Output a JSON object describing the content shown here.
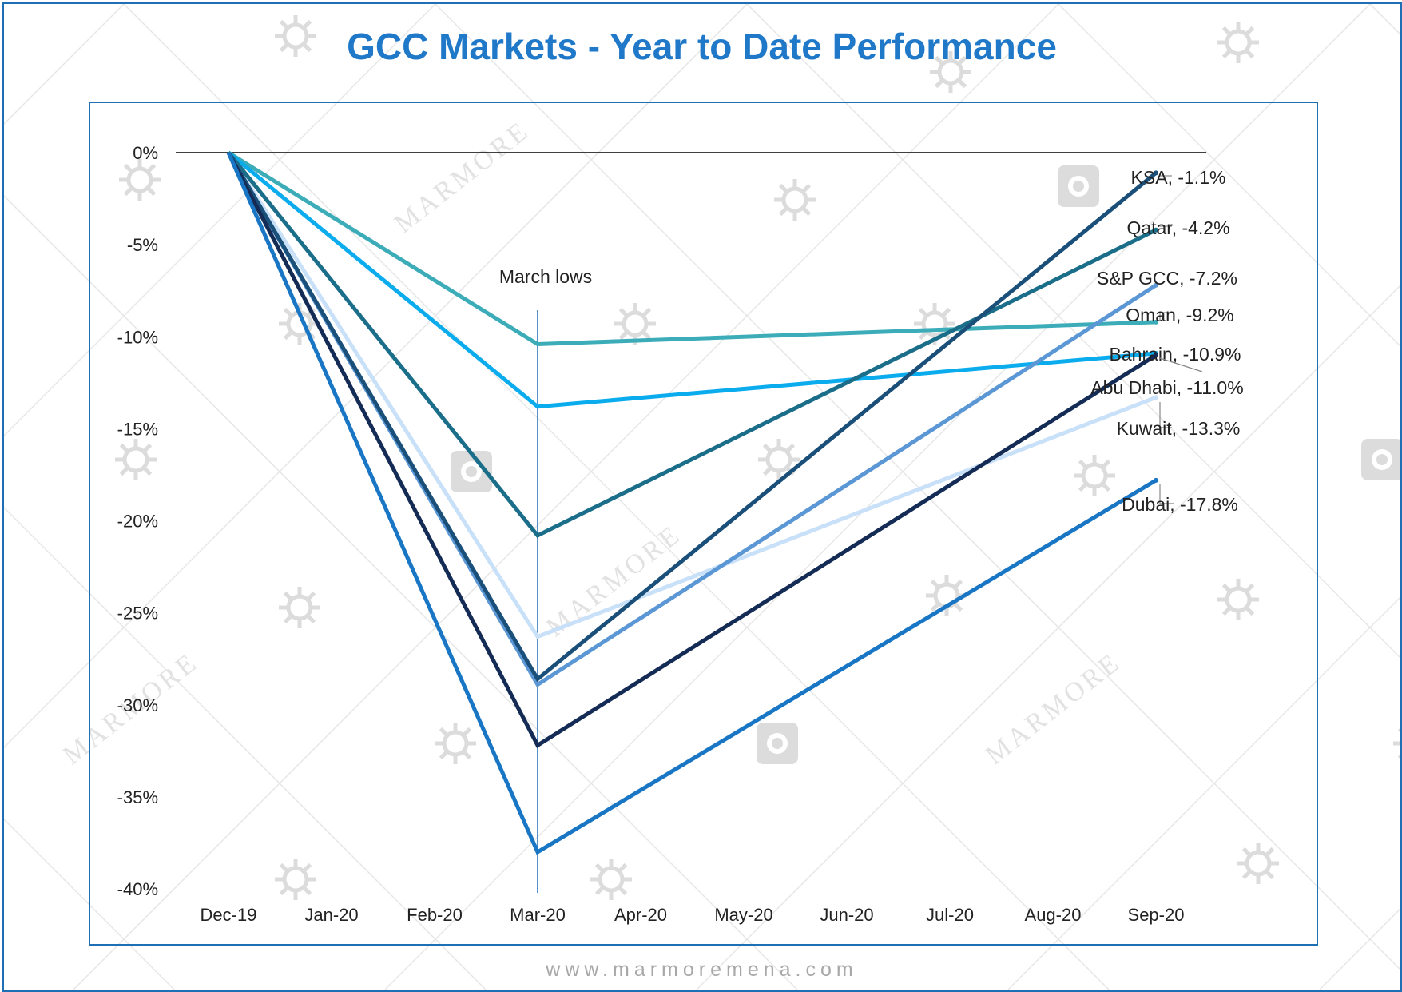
{
  "header": {
    "title": "GCC Markets - Year to Date Performance"
  },
  "footer": {
    "text": "www.marmoremena.com"
  },
  "watermark": {
    "text": "MARMORE",
    "color": "#dcdcdc"
  },
  "chart_data": {
    "type": "line",
    "title": "GCC Markets - Year to Date Performance",
    "xlabel": "",
    "ylabel": "",
    "x": [
      "Dec-19",
      "Jan-20",
      "Feb-20",
      "Mar-20",
      "Apr-20",
      "May-20",
      "Jun-20",
      "Jul-20",
      "Aug-20",
      "Sep-20"
    ],
    "y_ticks": [
      "0%",
      "-5%",
      "-10%",
      "-15%",
      "-20%",
      "-25%",
      "-30%",
      "-35%",
      "-40%"
    ],
    "ylim": [
      -40,
      0
    ],
    "grid": false,
    "legend": "labels at line ends",
    "annotation": {
      "label": "March lows",
      "x": "Mar-20"
    },
    "series": [
      {
        "name": "KSA",
        "label": "KSA, -1.1%",
        "color": "#1a4f7a",
        "points": [
          [
            "Dec-19",
            0
          ],
          [
            "Mar-20",
            -28.6
          ],
          [
            "Sep-20",
            -1.1
          ]
        ]
      },
      {
        "name": "Qatar",
        "label": "Qatar, -4.2%",
        "color": "#1b6e8a",
        "points": [
          [
            "Dec-19",
            0
          ],
          [
            "Mar-20",
            -20.8
          ],
          [
            "Sep-20",
            -4.2
          ]
        ]
      },
      {
        "name": "S&P GCC",
        "label": "S&P GCC, -7.2%",
        "color": "#5b97d4",
        "points": [
          [
            "Dec-19",
            0
          ],
          [
            "Mar-20",
            -28.9
          ],
          [
            "Sep-20",
            -7.2
          ]
        ]
      },
      {
        "name": "Oman",
        "label": "Oman, -9.2%",
        "color": "#3bacb8",
        "points": [
          [
            "Dec-19",
            0
          ],
          [
            "Mar-20",
            -10.4
          ],
          [
            "Sep-20",
            -9.2
          ]
        ]
      },
      {
        "name": "Bahrain",
        "label": "Bahrain, -10.9%",
        "color": "#0aacee",
        "points": [
          [
            "Dec-19",
            0
          ],
          [
            "Mar-20",
            -13.8
          ],
          [
            "Sep-20",
            -10.9
          ]
        ]
      },
      {
        "name": "Abu Dhabi",
        "label": "Abu Dhabi, -11.0%",
        "color": "#142c55",
        "points": [
          [
            "Dec-19",
            0
          ],
          [
            "Mar-20",
            -32.2
          ],
          [
            "Sep-20",
            -11.0
          ]
        ]
      },
      {
        "name": "Kuwait",
        "label": "Kuwait, -13.3%",
        "color": "#c8e0f8",
        "points": [
          [
            "Dec-19",
            0
          ],
          [
            "Mar-20",
            -26.3
          ],
          [
            "Sep-20",
            -13.3
          ]
        ]
      },
      {
        "name": "Dubai",
        "label": "Dubai, -17.8%",
        "color": "#1976c4",
        "points": [
          [
            "Dec-19",
            0
          ],
          [
            "Mar-20",
            -38.0
          ],
          [
            "Sep-20",
            -17.8
          ]
        ]
      }
    ],
    "colors": {
      "axis": "#000000",
      "text": "#222222",
      "annotation_line": "#1f6fb5",
      "leader": "#888888"
    }
  }
}
